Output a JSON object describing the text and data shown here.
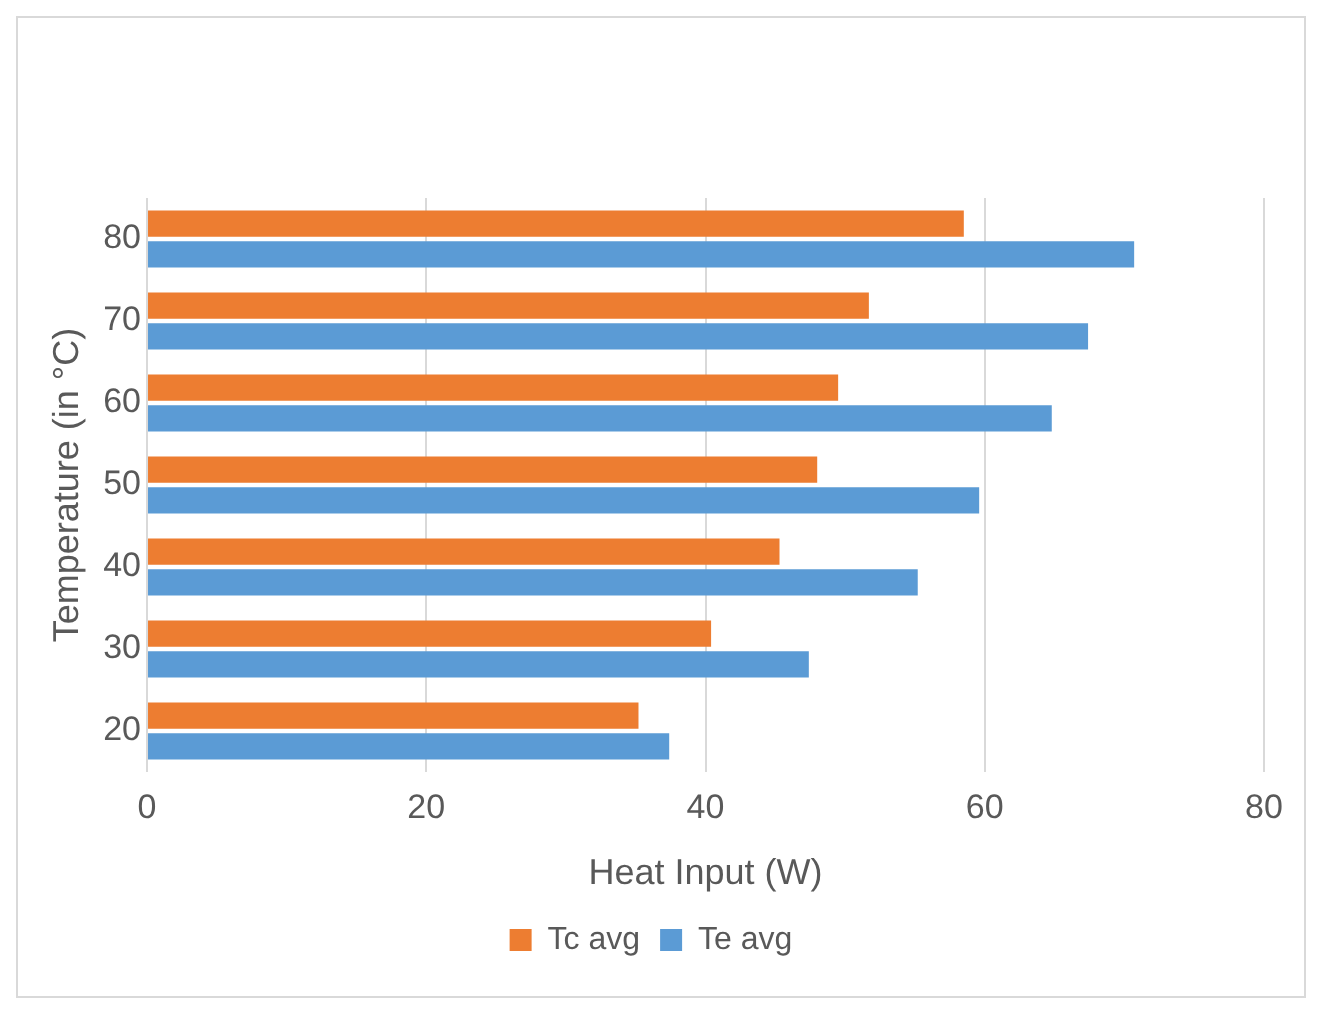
{
  "chart_data": {
    "type": "bar",
    "orientation": "horizontal",
    "xlabel": "Heat Input (W)",
    "ylabel": "Temperature (in °C)",
    "categories": [
      "80",
      "70",
      "60",
      "50",
      "40",
      "30",
      "20"
    ],
    "series": [
      {
        "name": "Tc avg",
        "color": "#ed7d31",
        "values": [
          58.5,
          51.7,
          49.5,
          48.0,
          45.3,
          40.4,
          35.2
        ]
      },
      {
        "name": "Te avg",
        "color": "#5b9bd5",
        "values": [
          70.7,
          67.4,
          64.8,
          59.6,
          55.2,
          47.4,
          37.4
        ]
      }
    ],
    "xlim": [
      0,
      80
    ],
    "xticks": [
      0,
      20,
      40,
      60,
      80
    ],
    "grid": "x",
    "legend": "bottom"
  }
}
